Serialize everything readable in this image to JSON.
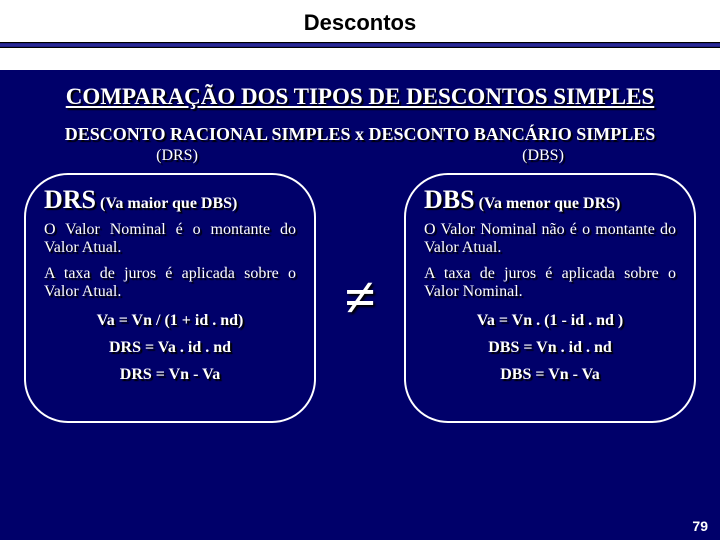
{
  "header": {
    "title": "Descontos"
  },
  "subtitle": "COMPARAÇÃO  DOS TIPOS  DE  DESCONTOS SIMPLES",
  "compare_line": "DESCONTO RACIONAL SIMPLES  x  DESCONTO BANCÁRIO SIMPLES",
  "abbr": {
    "left": "(DRS)",
    "right": "(DBS)"
  },
  "neq": "≠",
  "left": {
    "abbr": "DRS",
    "note": "(Va maior que DBS)",
    "p1": "O Valor Nominal é o montante do Valor Atual.",
    "p2": "A taxa de juros é aplicada sobre o Valor Atual.",
    "eq1": "Va = Vn / (1 + id . nd)",
    "eq2": "DRS = Va . id  . nd",
    "eq3": "DRS = Vn - Va"
  },
  "right": {
    "abbr": "DBS",
    "note": "(Va menor que DRS)",
    "p1": "O Valor Nominal não é o montante do Valor Atual.",
    "p2": "A taxa de juros é aplicada sobre o Valor Nominal.",
    "eq1": "Va = Vn . (1 - id . nd )",
    "eq2": "DBS = Vn . id . nd",
    "eq3": "DBS = Vn - Va"
  },
  "page_number": "79"
}
